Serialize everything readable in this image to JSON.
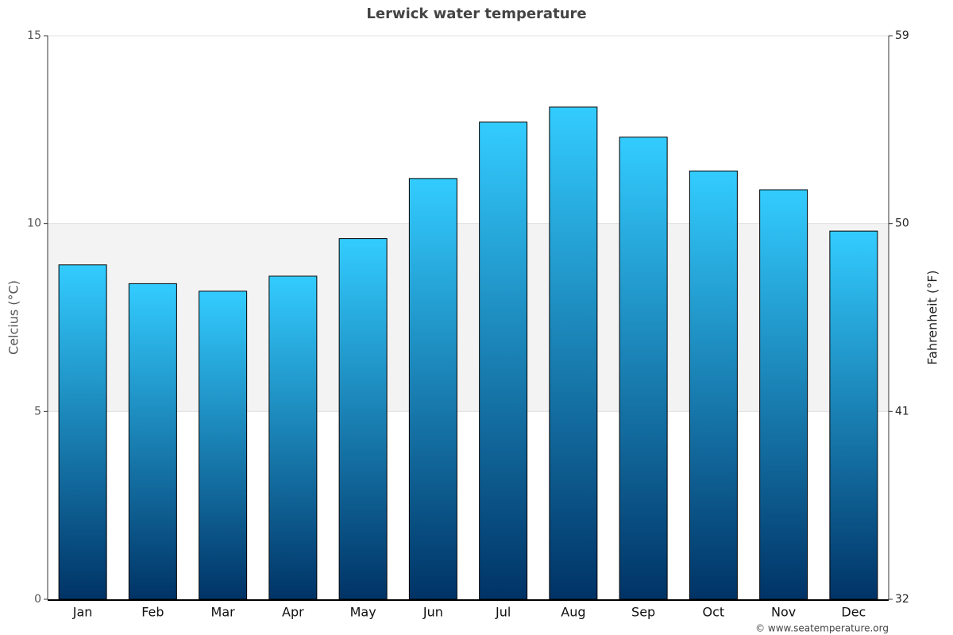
{
  "chart_data": {
    "type": "bar",
    "title": "Lerwick water temperature",
    "categories": [
      "Jan",
      "Feb",
      "Mar",
      "Apr",
      "May",
      "Jun",
      "Jul",
      "Aug",
      "Sep",
      "Oct",
      "Nov",
      "Dec"
    ],
    "values": [
      8.9,
      8.4,
      8.2,
      8.6,
      9.6,
      11.2,
      12.7,
      13.1,
      12.3,
      11.4,
      10.9,
      9.8
    ],
    "gradient": [
      "#33ccff",
      "#003366"
    ],
    "ylabel": "Celcius (°C)",
    "ylim": [
      0,
      15
    ],
    "yticks": [
      0,
      5,
      10,
      15
    ],
    "y2label": "Fahrenheit (°F)",
    "y2lim": [
      32,
      59
    ],
    "y2ticks": [
      32,
      41,
      50,
      59
    ],
    "plot_band": [
      5,
      10
    ],
    "grid": true,
    "credit": "© www.seatemperature.org"
  }
}
